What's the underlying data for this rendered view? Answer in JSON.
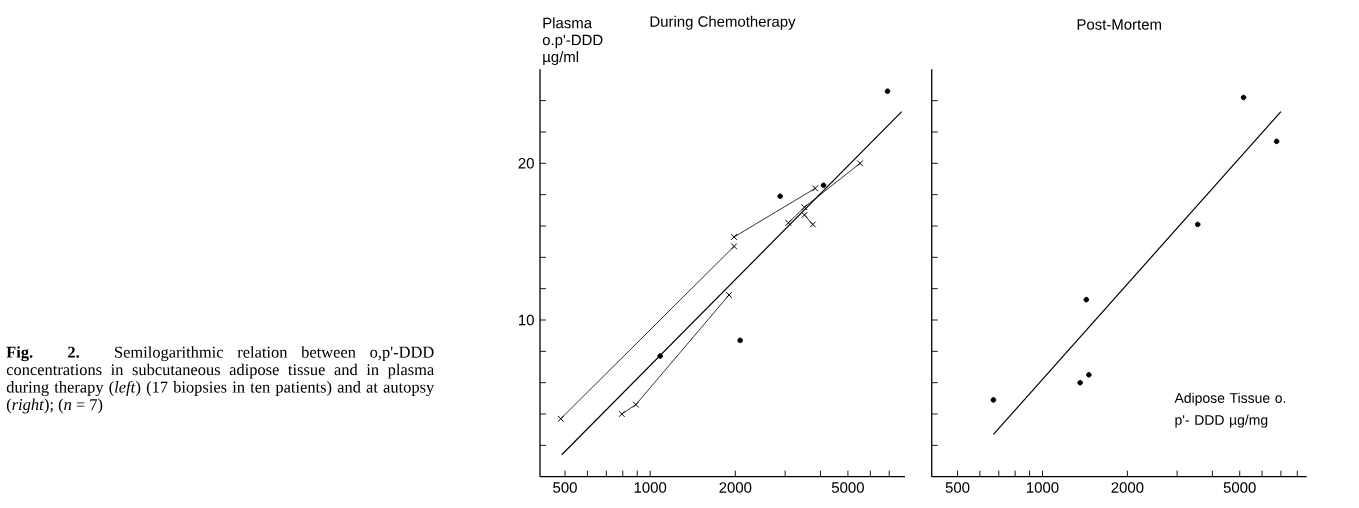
{
  "chart_data": [
    {
      "type": "scatter",
      "title": "During Chemotherapy",
      "ylabel": "Plasma o.p'-DDD µg/ml",
      "annotations": [
        "**Fig. 2.** Semilogarithmic relation between o,p'-DDD concentrations in subcutaneous adipose tissue and in plasma during therapy (*left*) (17 biopsies in ten patients) and at autopsy (*right*); (*n* = 7)"
      ],
      "log": "x",
      "xlim": [
        408,
        7960
      ],
      "ylim": [
        0,
        26
      ],
      "xticks": [
        500,
        {
          "value": 600,
          "label": null
        },
        {
          "value": 700,
          "label": null
        },
        {
          "value": 800,
          "label": null
        },
        {
          "value": 900,
          "label": null
        },
        1000,
        2000,
        {
          "value": 3000,
          "label": null
        },
        {
          "value": 4000,
          "label": null
        },
        5000,
        {
          "value": 6000,
          "label": null
        },
        {
          "value": 7000,
          "label": null
        }
      ],
      "yticks": [
        {
          "value": 2,
          "label": null
        },
        {
          "value": 4,
          "label": null
        },
        {
          "value": 6,
          "label": null
        },
        {
          "value": 8,
          "label": null
        },
        10,
        {
          "value": 12,
          "label": null
        },
        {
          "value": 14,
          "label": null
        },
        {
          "value": 16,
          "label": null
        },
        {
          "value": 18,
          "label": null
        },
        20,
        {
          "value": 22,
          "label": null
        },
        {
          "value": 24,
          "label": null
        }
      ],
      "series": [
        {
          "marker": "circle",
          "color": "#000000",
          "x": [
            6900,
            2880,
            4100,
            1085,
            2080
          ],
          "values": [
            24.6,
            17.9,
            18.6,
            7.7,
            8.7
          ]
        },
        {
          "type": "line",
          "marker": "cross",
          "color": "#000000",
          "x": [
            483,
            1980
          ],
          "values": [
            3.7,
            14.7
          ]
        },
        {
          "type": "line",
          "marker": "cross",
          "color": "#000000",
          "x": [
            1980,
            3830
          ],
          "values": [
            15.3,
            18.4
          ]
        },
        {
          "type": "line",
          "marker": "cross",
          "color": "#000000",
          "x": [
            794,
            890,
            1900
          ],
          "values": [
            4.0,
            4.6,
            11.6
          ]
        },
        {
          "type": "line",
          "marker": "cross",
          "color": "#000000",
          "x": [
            3080,
            3510,
            5520
          ],
          "values": [
            16.2,
            17.2,
            20.0
          ]
        },
        {
          "type": "line",
          "marker": "cross",
          "color": "#000000",
          "x": [
            3510,
            3760
          ],
          "values": [
            16.7,
            16.1
          ]
        },
        {
          "type": "line",
          "marker": "none",
          "color": "#000000",
          "x": [
            487,
            7750
          ],
          "values": [
            1.4,
            23.3
          ]
        }
      ]
    },
    {
      "type": "scatter",
      "title": "Post-Mortem",
      "xlabel": "Adipose Tissue o. p'- DDD µg/mg",
      "log": "x",
      "xlim": [
        405,
        8640
      ],
      "ylim": [
        0,
        26
      ],
      "tick_labels": "x",
      "xticks": [
        500,
        {
          "value": 600,
          "label": null
        },
        {
          "value": 700,
          "label": null
        },
        {
          "value": 800,
          "label": null
        },
        {
          "value": 900,
          "label": null
        },
        1000,
        2000,
        {
          "value": 3000,
          "label": null
        },
        {
          "value": 4000,
          "label": null
        },
        5000,
        {
          "value": 6000,
          "label": null
        },
        {
          "value": 7000,
          "label": null
        },
        {
          "value": 8000,
          "label": null
        }
      ],
      "yticks": [
        {
          "value": 2,
          "label": null
        },
        {
          "value": 4,
          "label": null
        },
        {
          "value": 6,
          "label": null
        },
        {
          "value": 8,
          "label": null
        },
        10,
        {
          "value": 12,
          "label": null
        },
        {
          "value": 14,
          "label": null
        },
        {
          "value": 16,
          "label": null
        },
        {
          "value": 18,
          "label": null
        },
        20,
        {
          "value": 22,
          "label": null
        },
        {
          "value": 24,
          "label": null
        }
      ],
      "series": [
        {
          "marker": "circle",
          "color": "#000000",
          "x": [
            670,
            1430,
            1360,
            1460,
            3550,
            5160,
            6760
          ],
          "values": [
            4.9,
            11.3,
            6.0,
            6.5,
            16.1,
            24.2,
            21.4
          ]
        },
        {
          "type": "line",
          "marker": "none",
          "color": "#000000",
          "x": [
            670,
            7000
          ],
          "values": [
            2.7,
            23.3
          ]
        }
      ]
    }
  ]
}
